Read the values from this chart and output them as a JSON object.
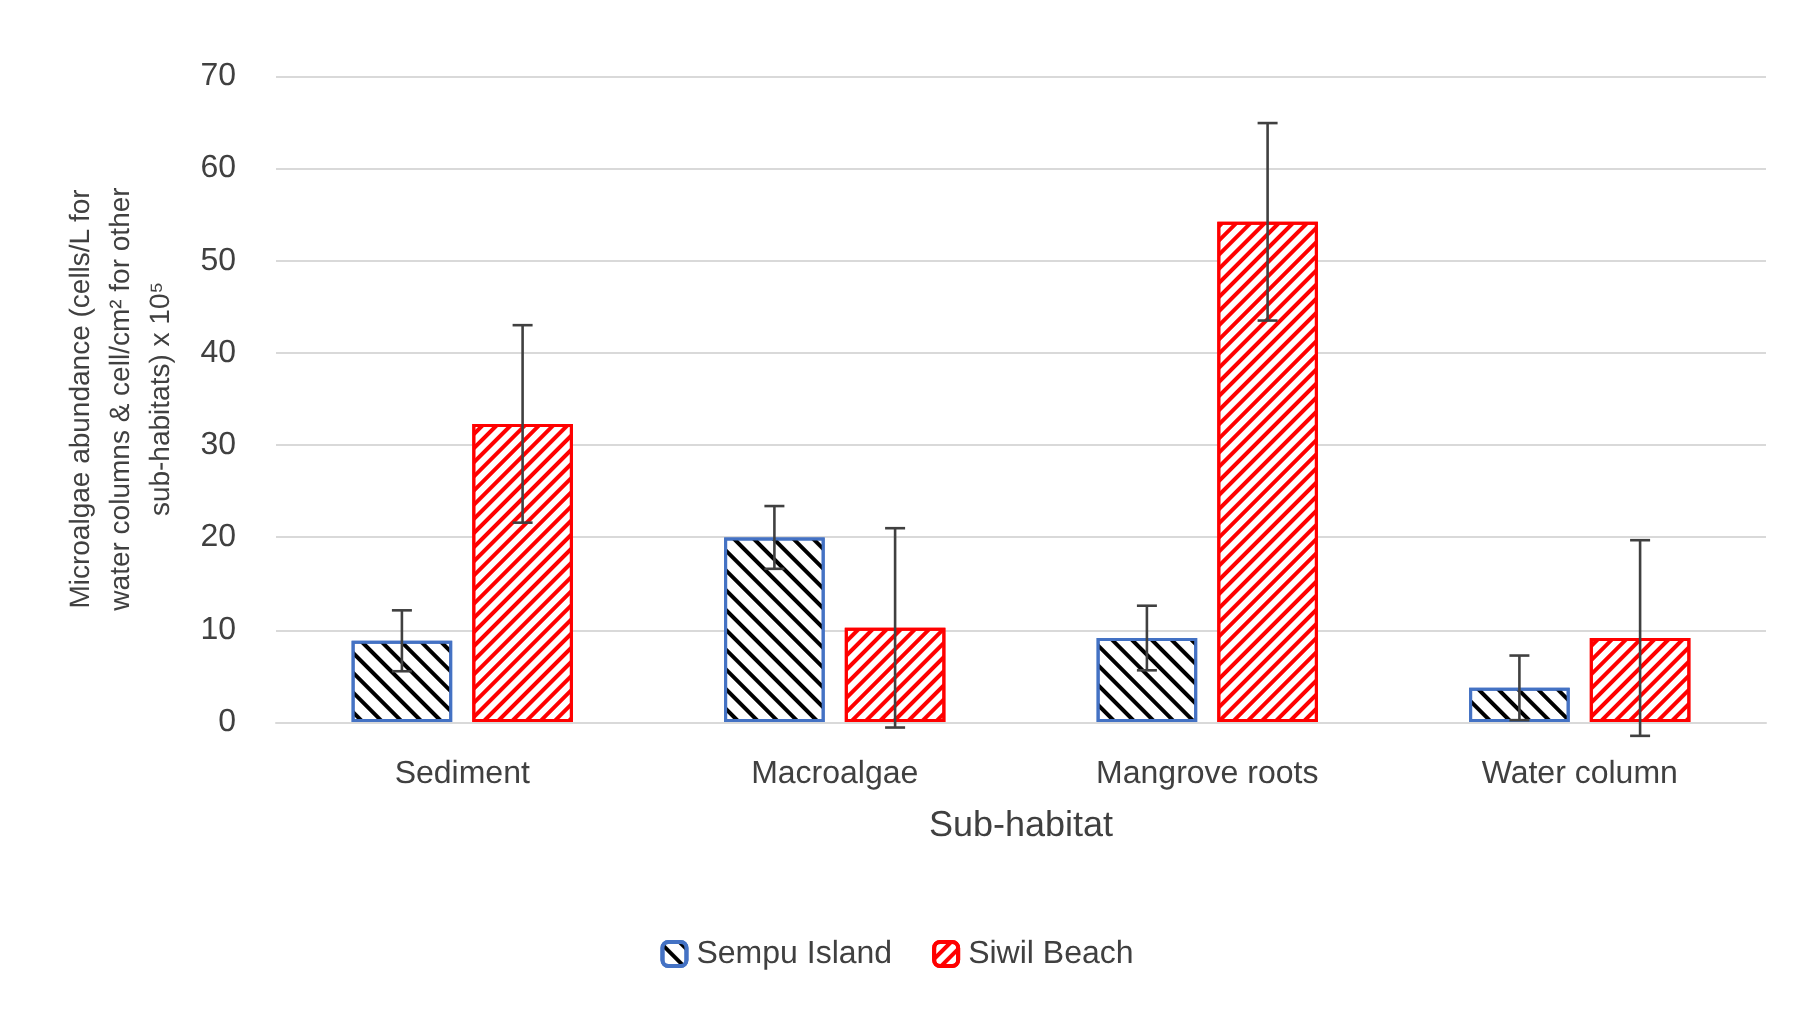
{
  "chart_data": {
    "type": "bar",
    "xlabel": "Sub-habitat",
    "ylabel": "Microalgae abundance (cells/L for water columns & cell/cm² for other sub-habitats) x 10⁵",
    "categories": [
      "Sediment",
      "Macroalgae",
      "Mangrove roots",
      "Water column"
    ],
    "series": [
      {
        "name": "Sempu Island",
        "color": "#4472c4",
        "values": [
          8.8,
          20.0,
          9.1,
          3.7
        ],
        "errors": [
          3.3,
          3.4,
          3.5,
          3.5
        ]
      },
      {
        "name": "Siwil Beach",
        "color": "#ff0000",
        "values": [
          32.3,
          10.2,
          54.2,
          9.1
        ],
        "errors": [
          10.7,
          10.8,
          10.7,
          10.6
        ]
      }
    ],
    "ylim": [
      0,
      70
    ],
    "yticks": [
      0,
      10,
      20,
      30,
      40,
      50,
      60,
      70
    ],
    "grid": "y",
    "legend": "bottom"
  }
}
